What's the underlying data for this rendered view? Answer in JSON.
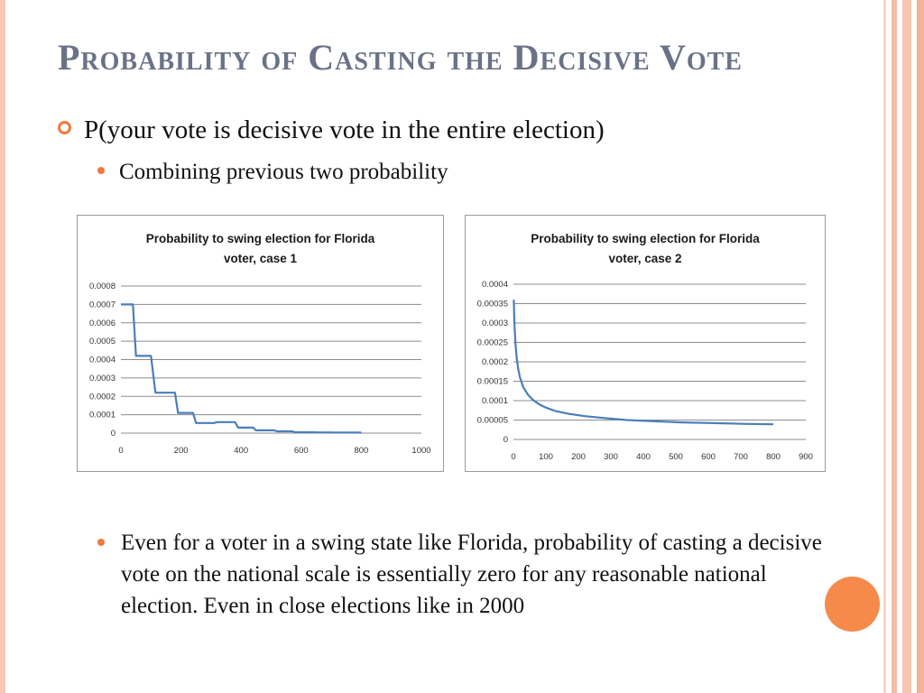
{
  "slide": {
    "title": "Probability of Casting the Decisive Vote",
    "bullet1": "P(your vote is decisive vote in the entire election)",
    "bullet2": "Combining previous two probability",
    "bottom_text": "Even for a voter in a swing state like Florida, probability of casting a decisive vote on the national scale is essentially zero for any reasonable national election. Even in close elections like in 2000",
    "accent_color": "#f07a3c",
    "title_color": "#6a7286"
  },
  "chart_data": [
    {
      "type": "line",
      "title_lines": [
        "Probability to swing election for Florida",
        "voter, case 1"
      ],
      "xlim": [
        0,
        1000
      ],
      "ylim": [
        0,
        0.0008
      ],
      "x_ticks": [
        0,
        200,
        400,
        600,
        800,
        1000
      ],
      "x_tick_labels": [
        "0",
        "200",
        "400",
        "600",
        "800",
        "1000"
      ],
      "y_ticks": [
        0,
        0.0001,
        0.0002,
        0.0003,
        0.0004,
        0.0005,
        0.0006,
        0.0007,
        0.0008
      ],
      "y_tick_labels": [
        "0",
        "0.0001",
        "0.0002",
        "0.0003",
        "0.0004",
        "0.0005",
        "0.0006",
        "0.0007",
        "0.0008"
      ],
      "grid": true,
      "line_color": "#4a7ebb",
      "series": [
        {
          "x": [
            0,
            40,
            50,
            100,
            115,
            180,
            190,
            240,
            250,
            310,
            320,
            380,
            390,
            440,
            450,
            510,
            520,
            570,
            580,
            640,
            650,
            700,
            710,
            800
          ],
          "y": [
            0.0007,
            0.0007,
            0.00042,
            0.00042,
            0.00022,
            0.00022,
            0.00011,
            0.00011,
            5.5e-05,
            5.5e-05,
            6e-05,
            6e-05,
            3e-05,
            3e-05,
            1.5e-05,
            1.5e-05,
            1e-05,
            1e-05,
            5e-06,
            5e-06,
            4e-06,
            4e-06,
            3e-06,
            3e-06
          ]
        }
      ]
    },
    {
      "type": "line",
      "title_lines": [
        "Probability to swing election for Florida",
        "voter, case 2"
      ],
      "xlim": [
        0,
        900
      ],
      "ylim": [
        0,
        0.0004
      ],
      "x_ticks": [
        0,
        100,
        200,
        300,
        400,
        500,
        600,
        700,
        800,
        900
      ],
      "x_tick_labels": [
        "0",
        "100",
        "200",
        "300",
        "400",
        "500",
        "600",
        "700",
        "800",
        "900"
      ],
      "y_ticks": [
        0,
        5e-05,
        0.0001,
        0.00015,
        0.0002,
        0.00025,
        0.0003,
        0.00035,
        0.0004
      ],
      "y_tick_labels": [
        "0",
        "0.00005",
        "0.0001",
        "0.00015",
        "0.0002",
        "0.00025",
        "0.0003",
        "0.00035",
        "0.0004"
      ],
      "grid": true,
      "line_color": "#4a7ebb",
      "series": [
        {
          "x": [
            1,
            3,
            6,
            10,
            15,
            20,
            30,
            45,
            60,
            80,
            100,
            130,
            170,
            220,
            280,
            350,
            430,
            520,
            620,
            720,
            800
          ],
          "y": [
            0.00036,
            0.0003,
            0.00025,
            0.00021,
            0.00018,
            0.00016,
            0.000135,
            0.000115,
            0.000102,
            9e-05,
            8.2e-05,
            7.3e-05,
            6.6e-05,
            6e-05,
            5.5e-05,
            5e-05,
            4.7e-05,
            4.4e-05,
            4.2e-05,
            4e-05,
            3.9e-05
          ]
        }
      ]
    }
  ]
}
